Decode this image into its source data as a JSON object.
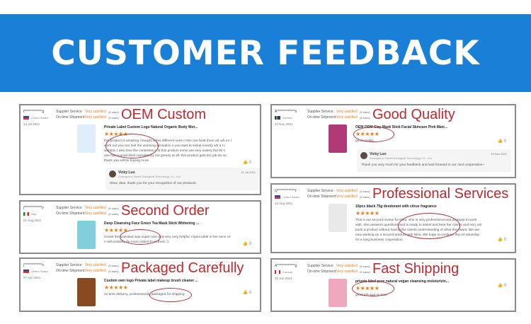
{
  "banner": {
    "title": "CUSTOMER FEEDBACK",
    "color": "#1a7fd6"
  },
  "labels": {
    "supplier": "Supplier Service:",
    "shipment": "On-time Shipment:",
    "stars": "★★★★★",
    "like_icon": "thumbs-up-icon"
  },
  "cards": [
    {
      "tag": "OEM Custom",
      "user": "f*************g",
      "country": "United States",
      "flag": "us",
      "supplier_rating": "Very satisfied",
      "supplier_stars": "(5 stars)",
      "shipment_rating": "Very satisfied",
      "shipment_stars": "(5 stars)",
      "date": "13 Jul 2021",
      "product": "Private Label Custom Logo Natural Organic Body Wor...",
      "review": "this product is amazing I bought a few different ones n this one beat them all. wh en I work out you can feel the warming sensation n you start to sweat exactly wh a t I wanted. I also love the consistency of this product some are very watery but thi s one has a good thick consistency not greasy at all. this product gets the job do ne. thank you will be buying more",
      "likes": "0",
      "reply": {
        "name": "Vicky Luo",
        "company": "Guangzhou Haishi Biological Technology Co., Ltd.",
        "date": "21 Jul 2021",
        "text": "Wow, dear, thank you for your recognition of our products."
      }
    },
    {
      "tag": "Good Quality",
      "user": "A*************n",
      "country": "Sweden",
      "flag": "se",
      "supplier_rating": "Very satisfied",
      "supplier_stars": "(5 stars)",
      "shipment_rating": "Very satisfied",
      "shipment_stars": "(5 stars)",
      "date": "24 Nov 2021",
      "product": "OEM ODM Clay Mask Stick Facial Skincare Pink Matc...",
      "review": "good quality",
      "likes": "0",
      "reply": {
        "name": "Vicky Luo",
        "company": "Guangzhou Haishi Biological Technology Co., Ltd.",
        "date": "16 Dec 2021",
        "text": "Thank you very much for your feedback and look forward to our next cooperation~"
      }
    },
    {
      "tag": "Second Order",
      "user": "j*************y",
      "country": "Italy",
      "flag": "it",
      "supplier_rating": "Very satisfied",
      "supplier_stars": "(5 stars)",
      "shipment_rating": "Very satisfied",
      "shipment_stars": "(5 stars)",
      "date": "01 Aug 2021",
      "product": "Deep Cleansing Face Green Tea Mask Stick Whitening ...",
      "review": "Great! the assistant was super nice and very very helpful, impeccable in her servi ce !I will certainly do more orders from them :)",
      "likes": "0"
    },
    {
      "tag": "Professional Services",
      "user": "Q*************r",
      "country": "United States",
      "flag": "us",
      "supplier_rating": "Very satisfied",
      "supplier_stars": "(5 stars)",
      "shipment_rating": "Very satisfied",
      "shipment_stars": "(5 stars)",
      "date": "12 Aug 2021",
      "product": "10pcs black 75g deodorant with citrus fragrance",
      "review": "This is our second review for Nina. She is very professional and pleasant to work with. She answers questions and is ready to assist and hear her clients and not j ust push a product without having the clients understanding of what they want. We are now working on a second product with Nina. We hope to continue this rel ationship for a long business cooperation.",
      "likes": "0"
    },
    {
      "tag": "Packaged Carefully",
      "user": "j*************s",
      "country": "United States",
      "flag": "us",
      "supplier_rating": "Very satisfied",
      "supplier_stars": "(5 stars)",
      "shipment_rating": "Very satisfied",
      "shipment_stars": "(5 stars)",
      "date": "07 Apr 2021",
      "product": "Custom own logo Private label makeup brush cleaner ...",
      "review": "on time delivery, professionally packaged for shipping",
      "likes": "0"
    },
    {
      "tag": "Fast Shipping",
      "user": "A*************g",
      "country": "Canada",
      "flag": "ca",
      "supplier_rating": "Very satisfied",
      "supplier_stars": "(5 stars)",
      "shipment_rating": "Very satisfied",
      "shipment_stars": "(5 stars)",
      "date": "25 Jun 2021",
      "product": "private label pure natural vegan cleansing moisturizin...",
      "review": "great job and on time",
      "likes": "0"
    }
  ]
}
